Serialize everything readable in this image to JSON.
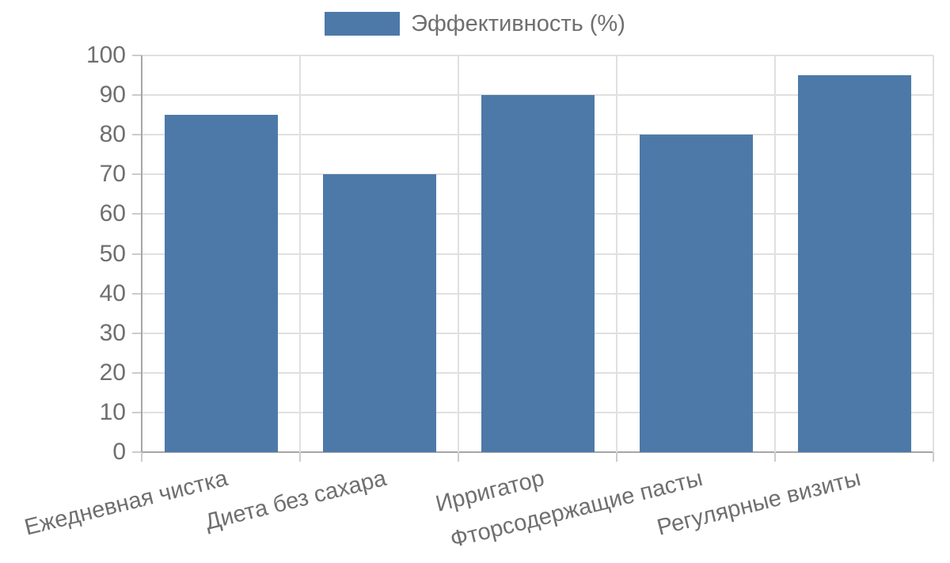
{
  "chart_data": {
    "type": "bar",
    "title": "",
    "xlabel": "",
    "ylabel": "",
    "categories": [
      "Ежедневная чистка",
      "Диета без сахара",
      "Ирригатор",
      "Фторсодержащие пасты",
      "Регулярные визиты"
    ],
    "series": [
      {
        "name": "Эффективность (%)",
        "values": [
          85,
          70,
          90,
          80,
          95
        ]
      }
    ],
    "ylim": [
      0,
      100
    ],
    "ytick_step": 10,
    "grid": true,
    "legend_position": "top",
    "colors": {
      "bar": "#4d79a8",
      "text": "#6f6f6f",
      "grid": "#e0e0e0",
      "axis": "#a6a6a6",
      "tick": "#cccccc"
    }
  }
}
